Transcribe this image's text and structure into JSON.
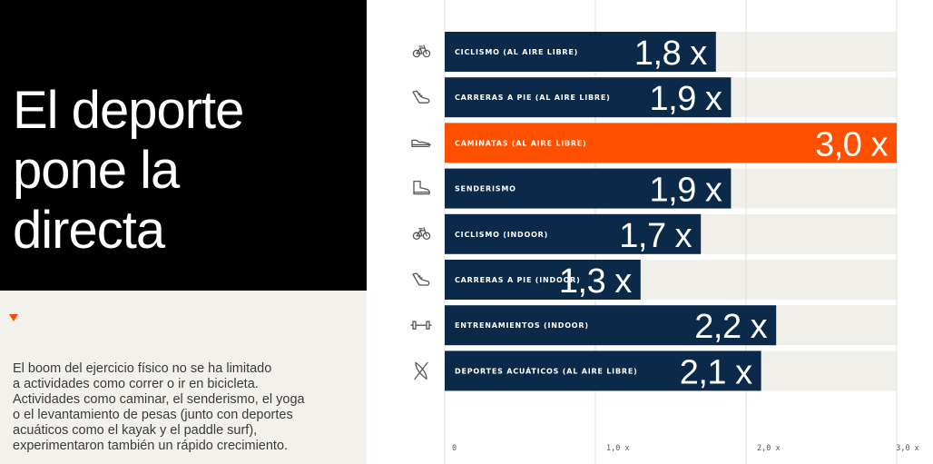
{
  "header": {
    "title_lines": [
      "El deporte",
      "pone la",
      "directa"
    ]
  },
  "description": {
    "lines": [
      "El boom del ejercicio físico no se ha limitado",
      "a actividades como correr o ir en bicicleta.",
      "Actividades como caminar, el senderismo, el yoga",
      "o el levantamiento de pesas (junto con deportes",
      "acuáticos como el kayak y el paddle surf),",
      "experimentaron también un rápido crecimiento."
    ]
  },
  "colors": {
    "bar": "#0b2a4a",
    "highlight": "#ff5000",
    "track": "#f1efe9",
    "grid": "#e2e0da",
    "icon": "#555555"
  },
  "chart_data": {
    "type": "bar",
    "orientation": "horizontal",
    "categories": [
      "CICLISMO (AL AIRE LIBRE)",
      "CARRERAS A PIE (AL AIRE LIBRE)",
      "CAMINATAS (AL AIRE LIBRE)",
      "SENDERISMO",
      "CICLISMO (INDOOR)",
      "CARRERAS A PIE (INDOOR)",
      "ENTRENAMIENTOS (INDOOR)",
      "DEPORTES ACUÁTICOS (AL AIRE LIBRE)"
    ],
    "values": [
      1.8,
      1.9,
      3.0,
      1.9,
      1.7,
      1.3,
      2.2,
      2.1
    ],
    "value_labels": [
      "1,8 x",
      "1,9 x",
      "3,0 x",
      "1,9 x",
      "1,7 x",
      "1,3 x",
      "2,2 x",
      "2,1 x"
    ],
    "icons": [
      "bicycle-icon",
      "shoe-icon",
      "sneaker-icon",
      "hiking-boot-icon",
      "bicycle-icon",
      "shoe-icon",
      "dumbbell-icon",
      "kayak-icon"
    ],
    "highlight_index": 2,
    "xlim": [
      0,
      3.0
    ],
    "ticks": [
      0,
      1.0,
      2.0,
      3.0
    ],
    "tick_labels": [
      "0",
      "1,0 x",
      "2,0 x",
      "3,0 x"
    ],
    "grid": true,
    "title": "",
    "xlabel": "",
    "ylabel": ""
  }
}
